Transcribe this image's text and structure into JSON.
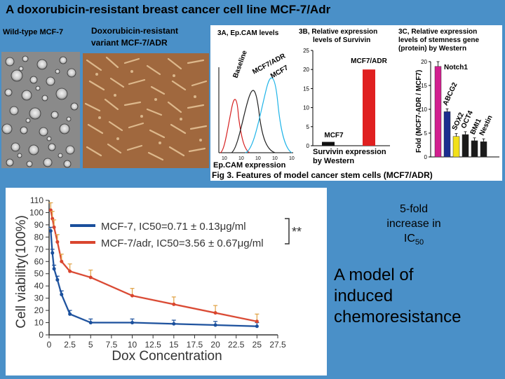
{
  "title": "A doxorubicin-resistant breast cancer cell line MCF-7/Adr",
  "captions": {
    "wild_type": "Wild-type MCF-7",
    "resistant_line1": "Doxorubicin-resistant",
    "resistant_line2": "variant  MCF-7/ADR"
  },
  "fig3": {
    "caption": "Fig 3. Features of model cancer stem cells (MCF7/ADR)",
    "a_title": "3A, Ep.CAM levels",
    "a_labels": [
      "Baseline",
      "MCF7/ADR",
      "MCF7"
    ],
    "a_xlabel": "Ep.CAM expression",
    "a_ticks": [
      "10",
      "10",
      "10",
      "10",
      "10"
    ],
    "b_title1": "3B, Relative expression",
    "b_title2": "levels of Survivin",
    "b_bar_labels": [
      "MCF7",
      "MCF7/ADR"
    ],
    "b_xlabel1": "Survivin expression",
    "b_xlabel2": "by Western",
    "c_title1": "3C, Relative expression",
    "c_title2": "levels of stemness gene",
    "c_title3": "(protein) by Western",
    "c_ylabel": "Fold (MCF7-ADR / MCF7)",
    "c_bar_labels": [
      "Notch1",
      "ABCG2",
      "SOX2",
      "OCT4",
      "BMI1",
      "Nestin"
    ]
  },
  "chart_data": [
    {
      "type": "line",
      "title": "",
      "xlabel": "Dox Concentration",
      "ylabel": "Cell viability(100%)",
      "xlim": [
        0,
        27.5
      ],
      "ylim": [
        0,
        110
      ],
      "xticks": [
        "0",
        "2.5",
        "5",
        "7.5",
        "10",
        "12.5",
        "15",
        "17.5",
        "20",
        "22.5",
        "25",
        "27.5"
      ],
      "yticks": [
        "0",
        "10",
        "20",
        "30",
        "40",
        "50",
        "60",
        "70",
        "80",
        "90",
        "100",
        "110"
      ],
      "legend_position": "top-right",
      "annotation": "**",
      "series": [
        {
          "name": "MCF-7, IC50=0.71 ± 0.13μg/ml",
          "color": "#1a4f9c",
          "x": [
            0.2,
            0.4,
            0.6,
            1.0,
            1.5,
            2.5,
            5,
            10,
            15,
            20,
            25
          ],
          "y": [
            85,
            67,
            54,
            45,
            33,
            17,
            10,
            10,
            9,
            8,
            7
          ]
        },
        {
          "name": "MCF-7/adr, IC50=3.56 ± 0.67μg/ml",
          "color": "#d9452e",
          "x": [
            0.2,
            0.4,
            0.6,
            1.0,
            1.5,
            2.5,
            5,
            10,
            15,
            20,
            25
          ],
          "y": [
            102,
            95,
            88,
            76,
            60,
            52,
            47,
            32,
            25,
            18,
            11
          ]
        }
      ]
    },
    {
      "type": "line",
      "title": "3A, Ep.CAM levels",
      "series": [
        {
          "name": "Baseline",
          "color": "#d62020"
        },
        {
          "name": "MCF7/ADR",
          "color": "#222222"
        },
        {
          "name": "MCF7",
          "color": "#1fb4e8"
        }
      ]
    },
    {
      "type": "bar",
      "title": "3B, Relative expression levels of Survivin",
      "categories": [
        "MCF7",
        "MCF7/ADR"
      ],
      "values": [
        1,
        20
      ],
      "colors": [
        "#111111",
        "#e02020"
      ],
      "ylim": [
        0,
        25
      ],
      "yticks": [
        "0",
        "5",
        "10",
        "15",
        "20",
        "25"
      ]
    },
    {
      "type": "bar",
      "title": "3C, Relative expression levels of stemness gene (protein) by Western",
      "categories": [
        "Notch1",
        "ABCG2",
        "SOX2",
        "OCT4",
        "BMI1",
        "Nestin"
      ],
      "values": [
        19,
        9.5,
        4.3,
        4.7,
        3.4,
        3.2
      ],
      "colors": [
        "#d21f8f",
        "#1c2e8f",
        "#f2e01a",
        "#1a1a1a",
        "#1a1a1a",
        "#1a1a1a"
      ],
      "ylim": [
        0,
        20
      ],
      "yticks": [
        "0",
        "5",
        "10",
        "15",
        "20"
      ],
      "ylabel": "Fold (MCF7-ADR / MCF7)"
    }
  ],
  "side_text": {
    "fold_line1": "5-fold",
    "fold_line2": "increase in",
    "fold_line3": "IC",
    "fold_sub": "50",
    "model_line1": "A model of",
    "model_line2": "induced",
    "model_line3": "chemoresistance"
  }
}
